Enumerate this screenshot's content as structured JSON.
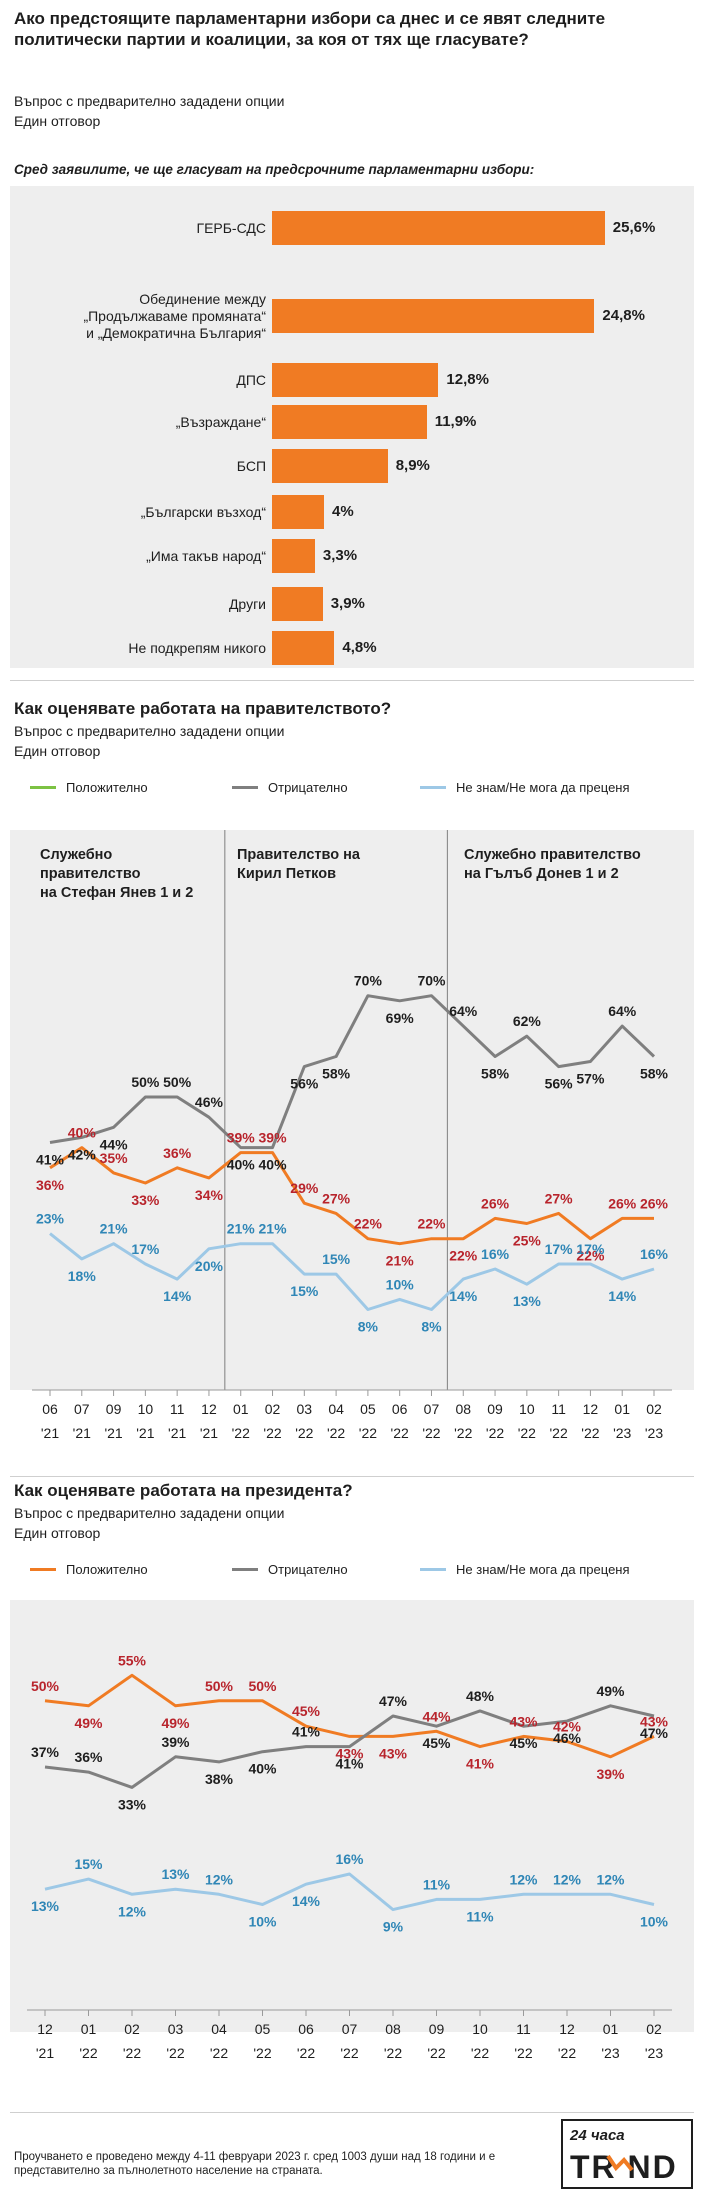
{
  "section1": {
    "title": "Ако предстоящите парламентарни избори са днес и се явят следните политически партии и коалиции, за коя от тях ще гласувате?",
    "sub1": "Въпрос с предварително зададени опции",
    "sub2": "Един отговор",
    "note": "Сред заявилите, че ще гласуват на предсрочните парламентарни избори:"
  },
  "bars_chart": {
    "chart_data": {
      "type": "bar",
      "orientation": "horizontal",
      "categories": [
        "ГЕРБ-СДС",
        "Обединение между „Продължаваме промяната“ и „Демократична България“",
        "ДПС",
        "„Възраждане“",
        "БСП",
        "„Български възход“",
        "„Има такъв народ“",
        "Други",
        "Не подкрепям никого"
      ],
      "values": [
        25.6,
        24.8,
        12.8,
        11.9,
        8.9,
        4,
        3.3,
        3.9,
        4.8
      ],
      "value_labels": [
        "25,6%",
        "24,8%",
        "12,8%",
        "11,9%",
        "8,9%",
        "4%",
        "3,3%",
        "3,9%",
        "4,8%"
      ],
      "color": "#f07b23"
    },
    "label_lines": [
      [
        "ГЕРБ-СДС"
      ],
      [
        "Обединение между",
        "„Продължаваме промяната“",
        "и „Демократична България“"
      ],
      [
        "ДПС"
      ],
      [
        "„Възраждане“"
      ],
      [
        "БСП"
      ],
      [
        "„Български възход“"
      ],
      [
        "„Има такъв народ“"
      ],
      [
        "Други"
      ],
      [
        "Не подкрепям никого"
      ]
    ]
  },
  "section2": {
    "title": "Как оценявате работата на правителството?",
    "sub1": "Въпрос с предварително зададени опции",
    "sub2": "Един отговор",
    "legend": [
      "Положително",
      "Отрицателно",
      "Не знам/Не мога да преценя"
    ],
    "eras": [
      [
        "Служебно",
        "правителство",
        "на Стефан Янев 1 и 2"
      ],
      [
        "Правителство на",
        "Кирил Петков"
      ],
      [
        "Служебно правителство",
        "на Гълъб Донев 1 и 2"
      ]
    ],
    "chart_data": {
      "type": "line",
      "x": [
        "06 '21",
        "07 '21",
        "09 '21",
        "10 '21",
        "11 '21",
        "12 '21",
        "01 '22",
        "02 '22",
        "03 '22",
        "04 '22",
        "05 '22",
        "06 '22",
        "07 '22",
        "08 '22",
        "09 '22",
        "10 '22",
        "11 '22",
        "12 '22",
        "01 '23",
        "02 '23"
      ],
      "x_months": [
        "06",
        "07",
        "09",
        "10",
        "11",
        "12",
        "01",
        "02",
        "03",
        "04",
        "05",
        "06",
        "07",
        "08",
        "09",
        "10",
        "11",
        "12",
        "01",
        "02"
      ],
      "x_years": [
        "'21",
        "'21",
        "'21",
        "'21",
        "'21",
        "'21",
        "'22",
        "'22",
        "'22",
        "'22",
        "'22",
        "'22",
        "'22",
        "'22",
        "'22",
        "'22",
        "'22",
        "'22",
        "'23",
        "'23"
      ],
      "series": [
        {
          "name": "Положително",
          "color": "#f07b23",
          "label_color": "#b8242c",
          "values": [
            36,
            40,
            35,
            33,
            36,
            34,
            39,
            39,
            29,
            27,
            22,
            21,
            22,
            22,
            26,
            25,
            27,
            22,
            26,
            26
          ]
        },
        {
          "name": "Отрицателно",
          "color": "#7f7f7f",
          "label_color": "#1e1e1e",
          "values": [
            41,
            42,
            44,
            50,
            50,
            46,
            40,
            40,
            56,
            58,
            70,
            69,
            70,
            64,
            58,
            62,
            56,
            57,
            64,
            58
          ]
        },
        {
          "name": "Не знам/Не мога да преценя",
          "color": "#9dc8e6",
          "label_color": "#2f86b6",
          "values": [
            23,
            18,
            21,
            17,
            14,
            20,
            21,
            21,
            15,
            15,
            8,
            10,
            8,
            14,
            16,
            13,
            17,
            17,
            14,
            16
          ]
        }
      ],
      "era_dividers_after_index": [
        5,
        12
      ],
      "grid": false
    }
  },
  "section3": {
    "title": "Как оценявате работата на президента?",
    "sub1": "Въпрос с предварително зададени опции",
    "sub2": "Един отговор",
    "legend": [
      "Положително",
      "Отрицателно",
      "Не знам/Не мога да преценя"
    ],
    "chart_data": {
      "type": "line",
      "x": [
        "12 '21",
        "01 '22",
        "02 '22",
        "03 '22",
        "04 '22",
        "05 '22",
        "06 '22",
        "07 '22",
        "08 '22",
        "09 '22",
        "10 '22",
        "11 '22",
        "12 '22",
        "01 '23",
        "02 '23"
      ],
      "x_months": [
        "12",
        "01",
        "02",
        "03",
        "04",
        "05",
        "06",
        "07",
        "08",
        "09",
        "10",
        "11",
        "12",
        "01",
        "02"
      ],
      "x_years": [
        "'21",
        "'22",
        "'22",
        "'22",
        "'22",
        "'22",
        "'22",
        "'22",
        "'22",
        "'22",
        "'22",
        "'22",
        "'22",
        "'23",
        "'23"
      ],
      "series": [
        {
          "name": "Положително",
          "color": "#f07b23",
          "label_color": "#b8242c",
          "values": [
            50,
            49,
            55,
            49,
            50,
            50,
            45,
            43,
            43,
            44,
            41,
            43,
            42,
            39,
            43
          ]
        },
        {
          "name": "Отрицателно",
          "color": "#7f7f7f",
          "label_color": "#1e1e1e",
          "values": [
            37,
            36,
            33,
            39,
            38,
            40,
            41,
            41,
            47,
            45,
            48,
            45,
            46,
            49,
            47
          ]
        },
        {
          "name": "Не знам/Не мога да преценя",
          "color": "#9dc8e6",
          "label_color": "#2f86b6",
          "values": [
            13,
            15,
            12,
            13,
            12,
            10,
            14,
            16,
            9,
            11,
            11,
            12,
            12,
            12,
            10
          ]
        }
      ],
      "grid": false
    }
  },
  "footer": {
    "text": "Проучването е проведено между 4-11 февруари 2023 г. сред 1003 души над 18 години и е представително за пълнолетното население на страната."
  },
  "logo": {
    "top": "24 часа",
    "word": "TR ND"
  }
}
